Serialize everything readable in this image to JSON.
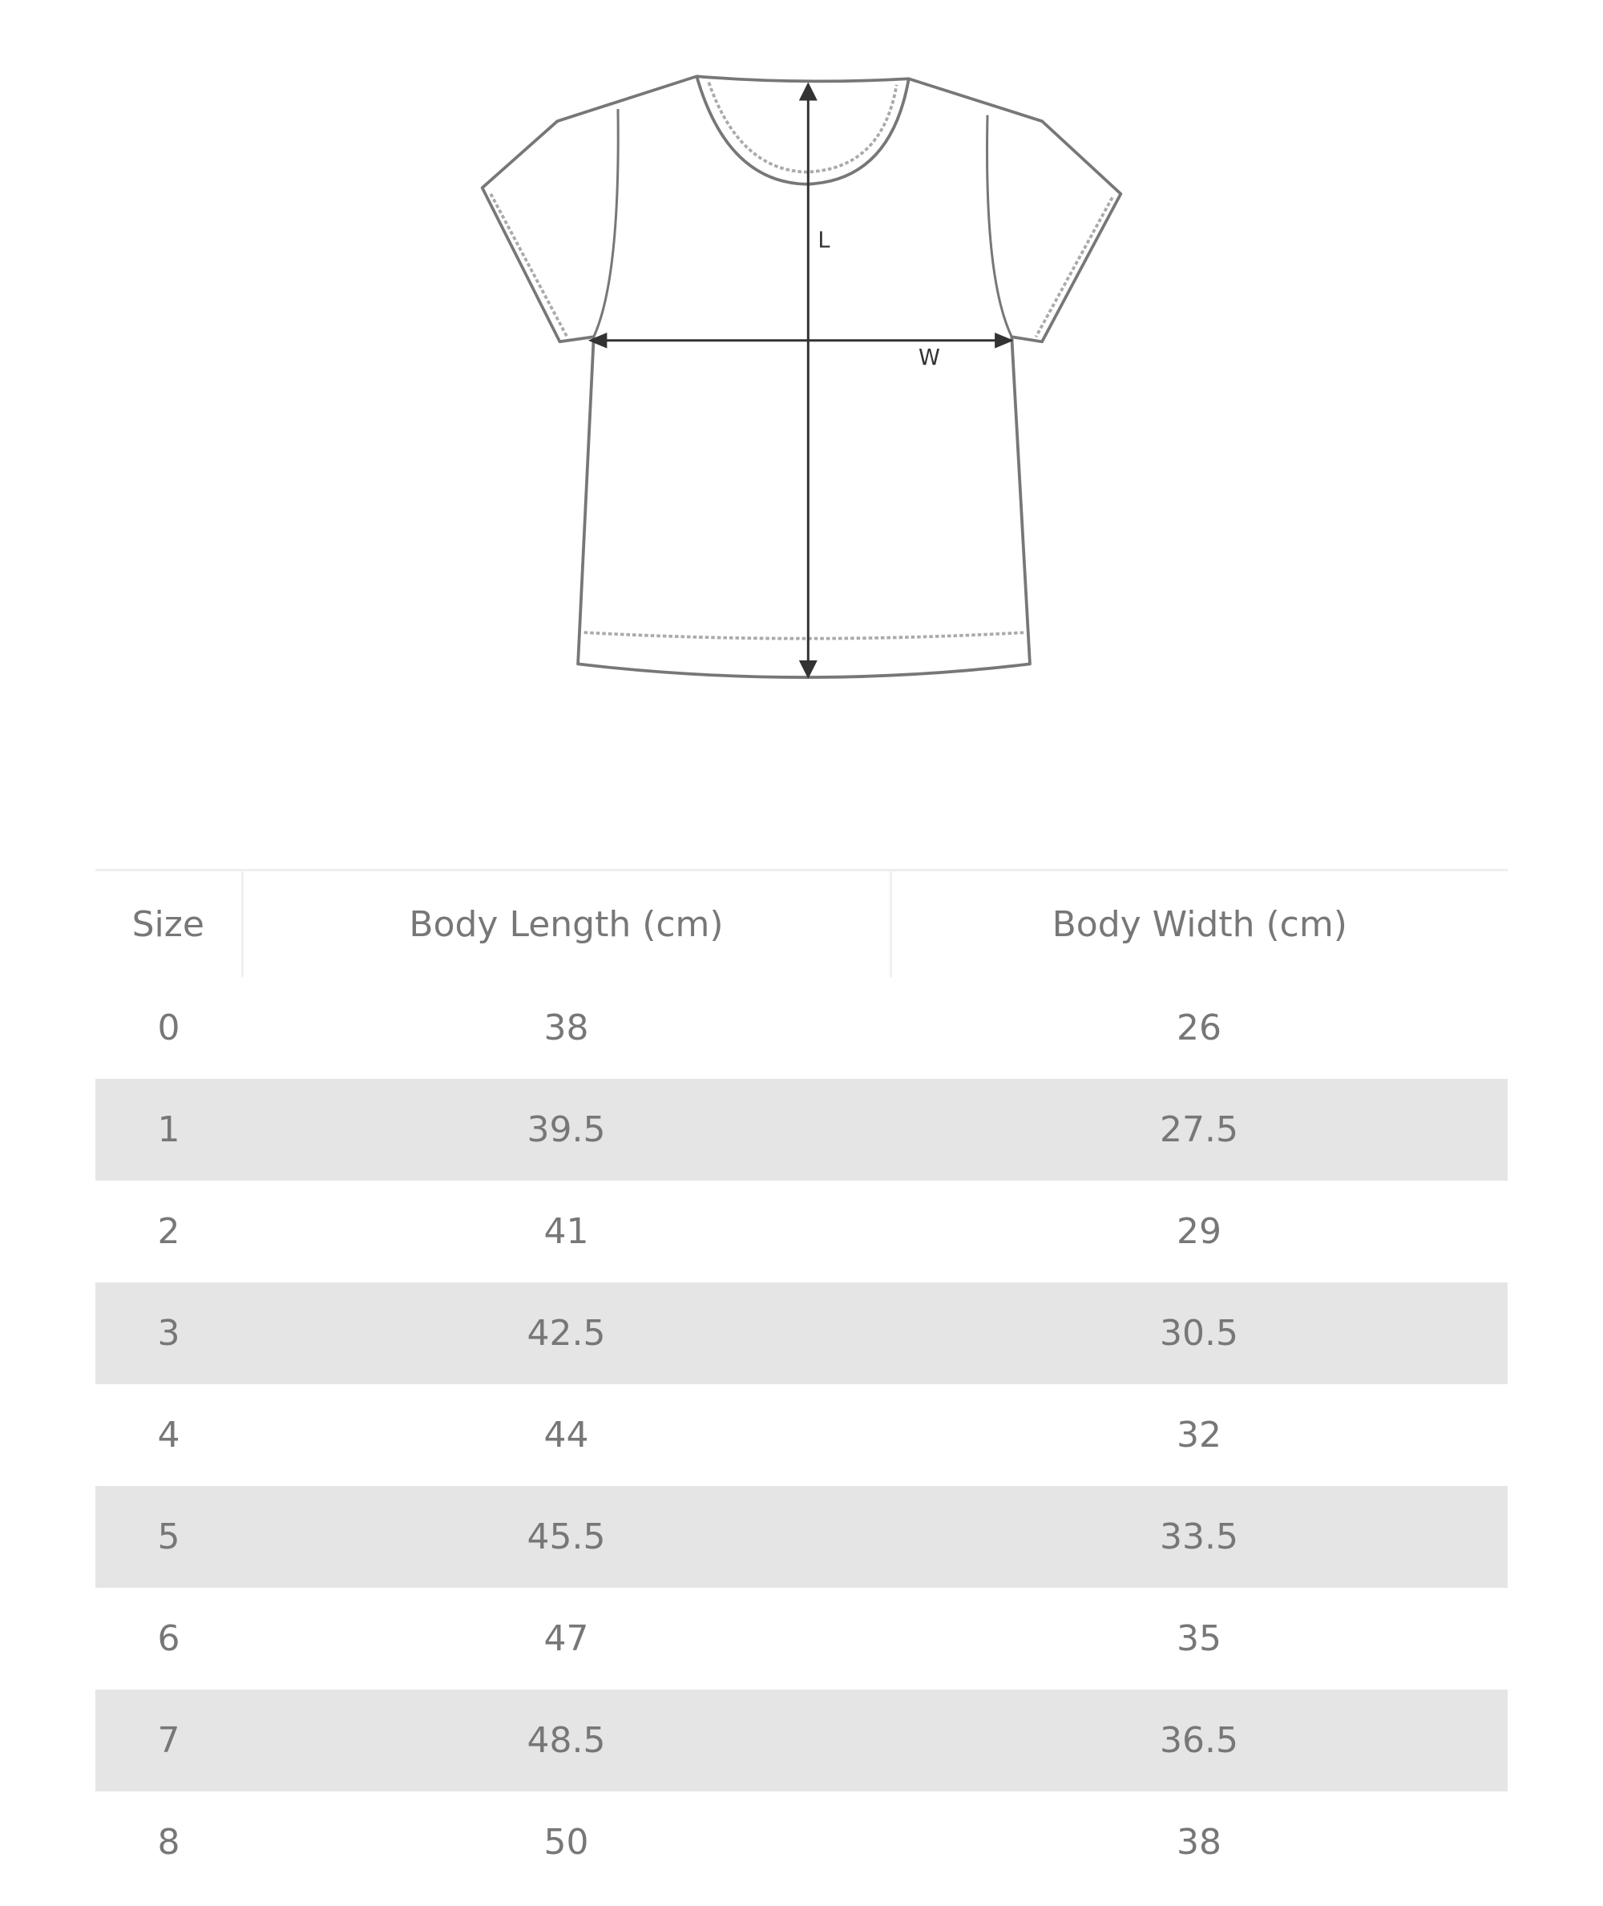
{
  "diagram": {
    "length_label": "L",
    "width_label": "W"
  },
  "table": {
    "header": [
      "Size",
      "Body Length (cm)",
      "Body Width (cm)"
    ],
    "rows": [
      [
        "0",
        "38",
        "26"
      ],
      [
        "1",
        "39.5",
        "27.5"
      ],
      [
        "2",
        "41",
        "29"
      ],
      [
        "3",
        "42.5",
        "30.5"
      ],
      [
        "4",
        "44",
        "32"
      ],
      [
        "5",
        "45.5",
        "33.5"
      ],
      [
        "6",
        "47",
        "35"
      ],
      [
        "7",
        "48.5",
        "36.5"
      ],
      [
        "8",
        "50",
        "38"
      ]
    ]
  }
}
